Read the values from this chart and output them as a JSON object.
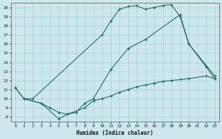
{
  "xlabel": "Humidex (Indice chaleur)",
  "xlim": [
    -0.5,
    23.5
  ],
  "ylim": [
    7.5,
    20.5
  ],
  "xticks": [
    0,
    1,
    2,
    3,
    4,
    5,
    6,
    7,
    8,
    9,
    10,
    11,
    12,
    13,
    14,
    15,
    16,
    17,
    18,
    19,
    20,
    21,
    22,
    23
  ],
  "yticks": [
    8,
    9,
    10,
    11,
    12,
    13,
    14,
    15,
    16,
    17,
    18,
    19,
    20
  ],
  "bg_color": "#cce8ec",
  "line_color": "#1a6b60",
  "grid_color": "#a8cdd4",
  "line1_x": [
    0,
    1,
    2,
    10,
    11,
    12,
    13,
    14,
    15,
    16,
    17,
    18,
    19,
    20,
    22,
    23
  ],
  "line1_y": [
    11.2,
    10.0,
    10.0,
    17.0,
    18.5,
    19.8,
    20.1,
    20.2,
    19.8,
    20.0,
    20.2,
    20.3,
    19.0,
    16.0,
    13.5,
    12.2
  ],
  "line2_x": [
    0,
    1,
    3,
    4,
    5,
    6,
    7,
    8,
    9,
    11,
    13,
    15,
    19,
    20,
    23
  ],
  "line2_y": [
    11.2,
    10.0,
    9.5,
    9.0,
    8.5,
    8.3,
    8.5,
    9.5,
    10.0,
    13.2,
    15.5,
    16.5,
    19.2,
    16.0,
    12.5
  ],
  "line3_x": [
    1,
    3,
    5,
    6,
    8,
    9,
    10,
    11,
    12,
    13,
    14,
    15,
    16,
    17,
    18,
    19,
    20,
    22,
    23
  ],
  "line3_y": [
    10.0,
    9.5,
    7.8,
    8.3,
    9.0,
    9.8,
    10.0,
    10.3,
    10.7,
    11.0,
    11.3,
    11.5,
    11.7,
    11.9,
    12.0,
    12.1,
    12.2,
    12.5,
    12.2
  ]
}
